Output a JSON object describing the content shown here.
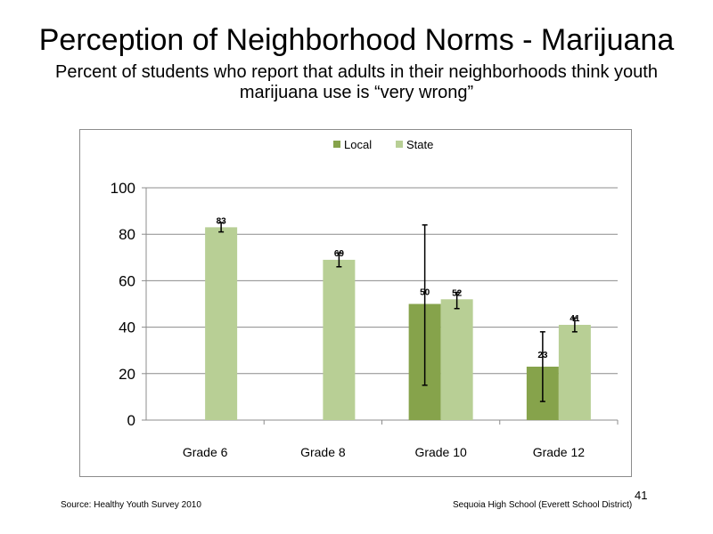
{
  "slide": {
    "title": "Perception  of Neighborhood  Norms - Marijuana",
    "subtitle": "Percent of students  who report that adults  in their neighborhoods  think  youth marijuana  use is “very wrong”",
    "source": "Source: Healthy  Youth Survey 2010",
    "school": "Sequoia High School (Everett School District)",
    "page_number": "41"
  },
  "chart_data": {
    "type": "bar",
    "categories": [
      "Grade 6",
      "Grade 8",
      "Grade 10",
      "Grade 12"
    ],
    "series": [
      {
        "name": "Local",
        "color": "#86a34b",
        "values": [
          null,
          null,
          50,
          23
        ],
        "labels": [
          "",
          "",
          "50",
          "23"
        ],
        "error_low": [
          null,
          null,
          15,
          8
        ],
        "error_high": [
          null,
          null,
          84,
          38
        ]
      },
      {
        "name": "State",
        "color": "#b8cf95",
        "values": [
          83,
          69,
          52,
          41
        ],
        "labels": [
          "83",
          "69",
          "52",
          "41"
        ],
        "error_low": [
          81,
          66,
          48,
          38
        ],
        "error_high": [
          85,
          72,
          55,
          44
        ]
      }
    ],
    "yticks": [
      "0",
      "20",
      "40",
      "60",
      "80",
      "100"
    ],
    "ylim": [
      0,
      100
    ],
    "grid": true,
    "legend_position": "top"
  }
}
